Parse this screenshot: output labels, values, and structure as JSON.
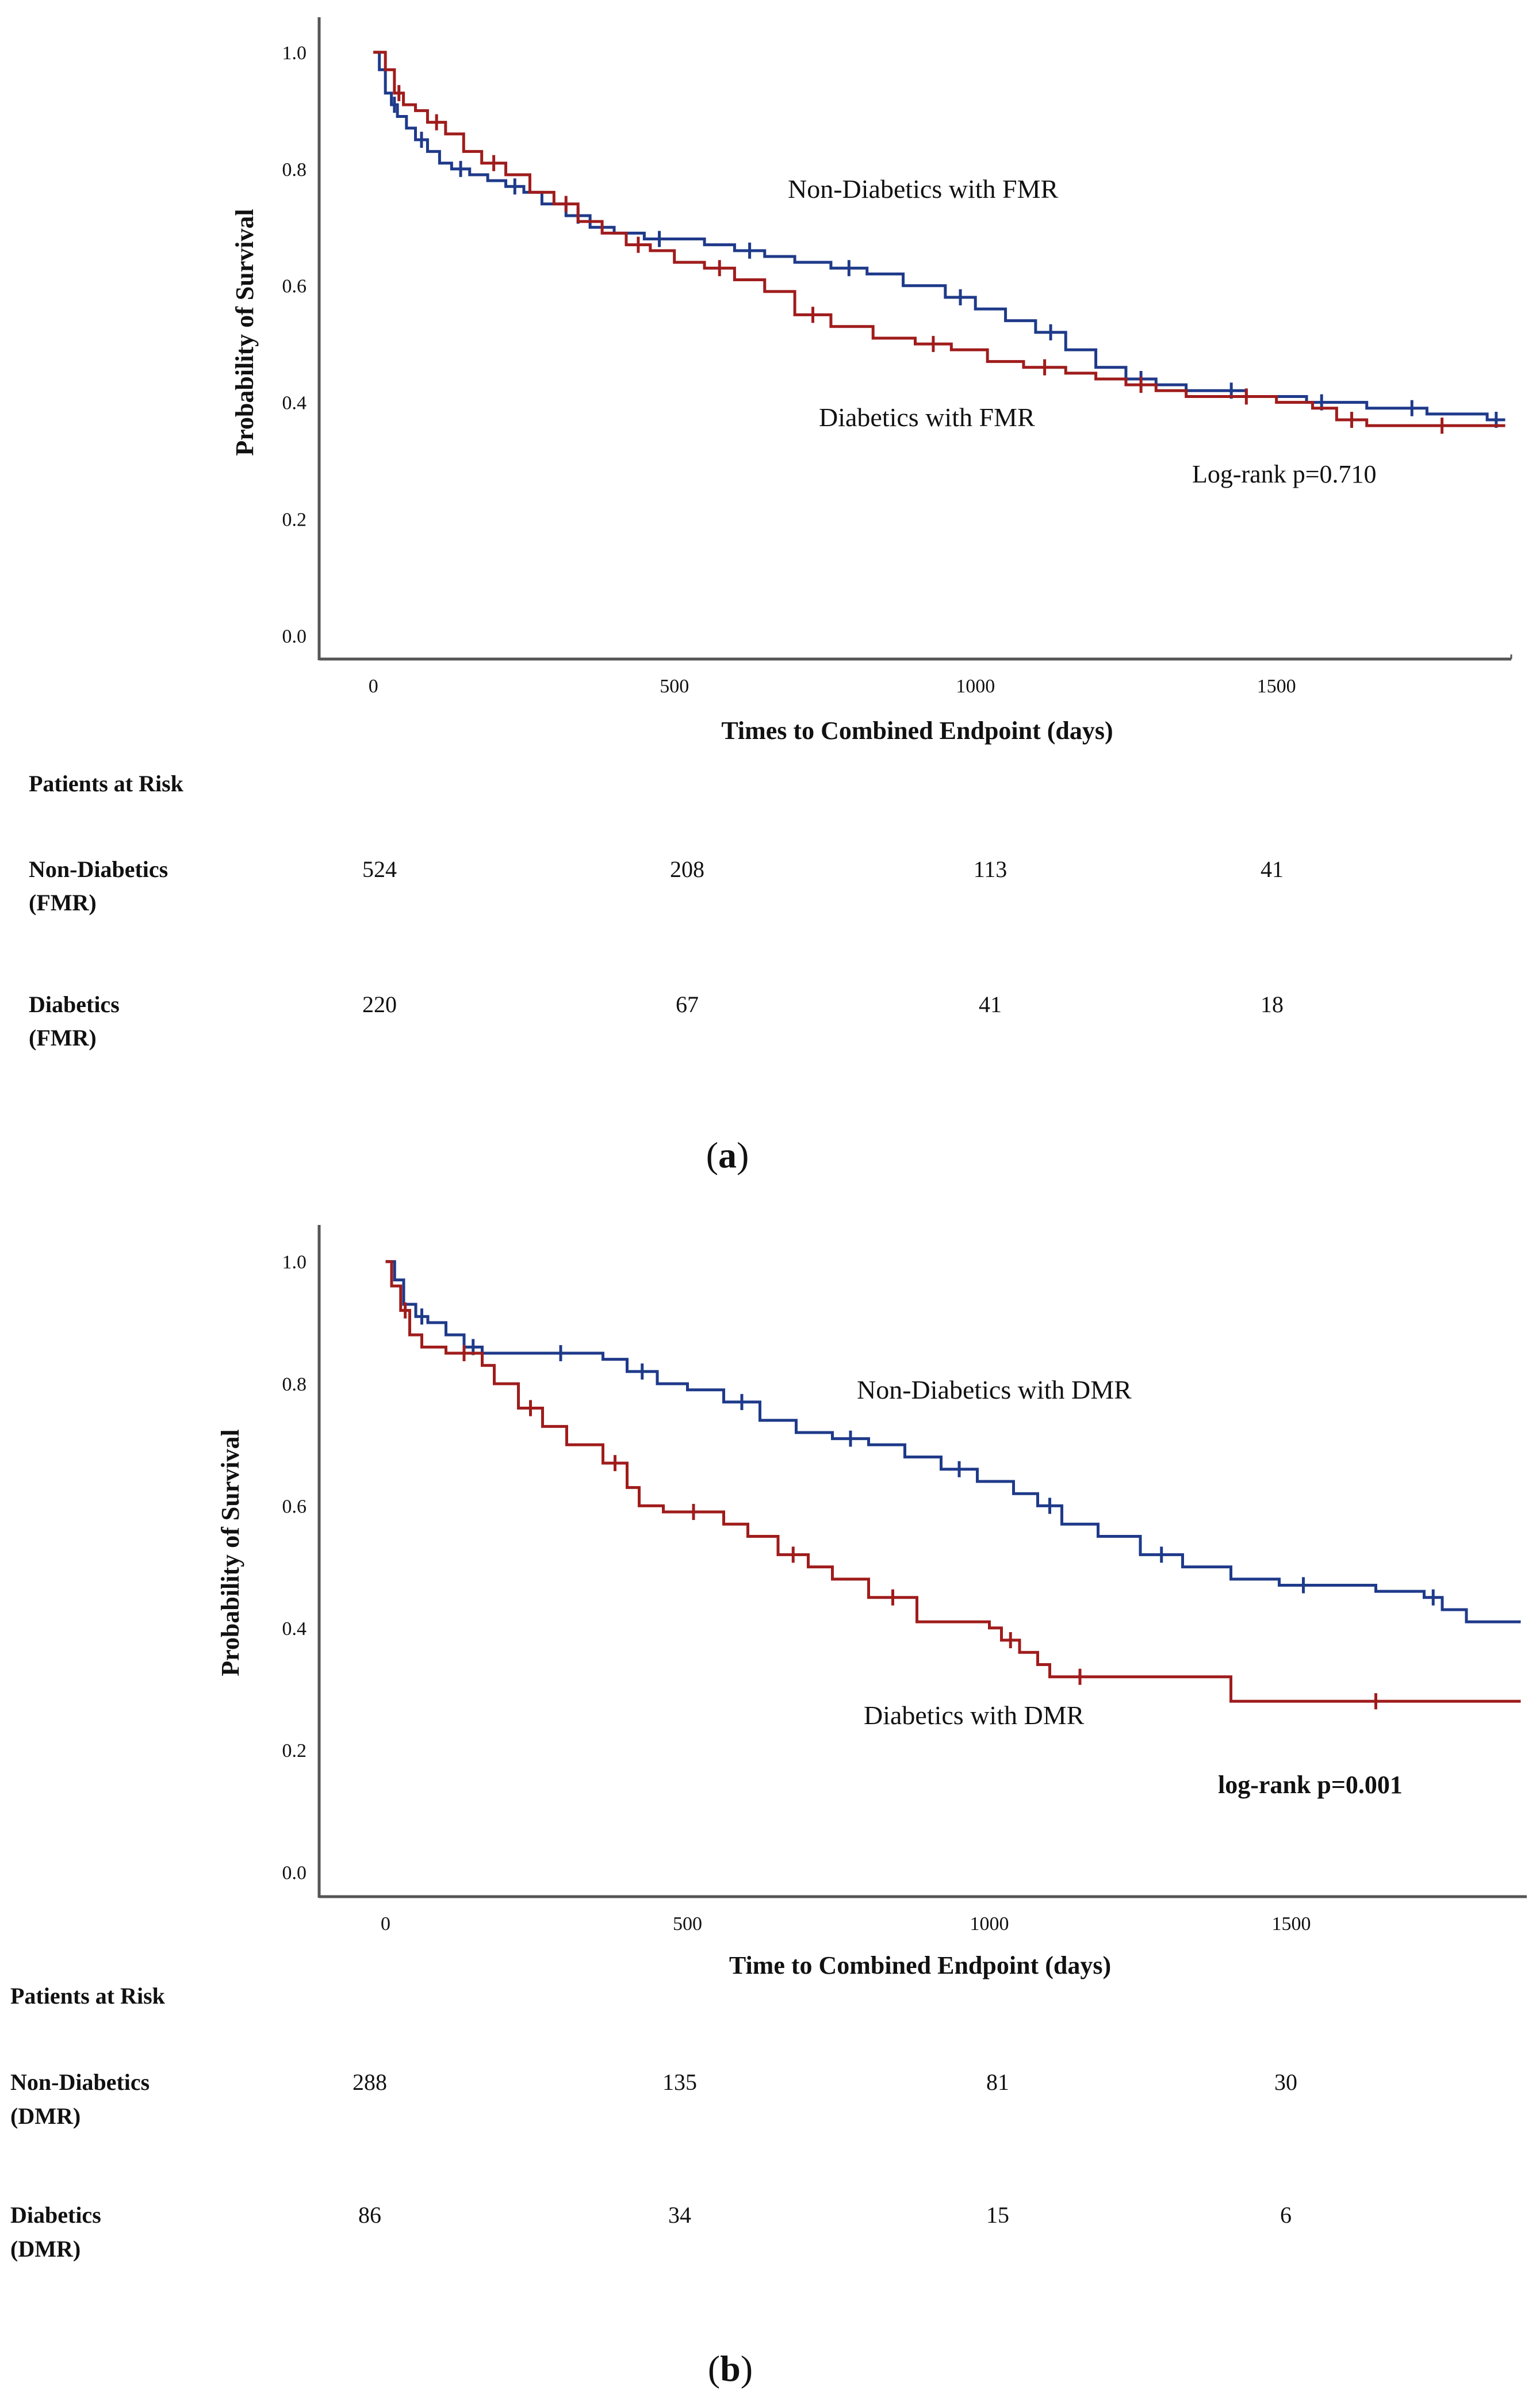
{
  "chart_data": [
    {
      "panel": "(a)",
      "type": "line",
      "subtype": "kaplan-meier",
      "xlabel": "Times to Combined Endpoint (days)",
      "ylabel": "Probability of Survival",
      "xlim": [
        -90,
        1890
      ],
      "ylim": [
        -0.04,
        1.06
      ],
      "xticks": [
        0,
        500,
        1000,
        1500
      ],
      "yticks": [
        0.0,
        0.2,
        0.4,
        0.6,
        0.8,
        1.0
      ],
      "ytick_labels": [
        "0.0",
        "0.2",
        "0.4",
        "0.6",
        "0.8",
        "1.0"
      ],
      "annotations": {
        "non_diabetics": "Non-Diabetics with FMR",
        "diabetics": "Diabetics with FMR",
        "pvalue": "Log-rank p=0.710"
      },
      "series": [
        {
          "name": "Non-Diabetics with FMR",
          "color": "#1f3a8a",
          "x": [
            0,
            10,
            20,
            30,
            40,
            55,
            70,
            90,
            110,
            130,
            160,
            190,
            220,
            250,
            280,
            320,
            360,
            400,
            450,
            500,
            550,
            600,
            650,
            700,
            760,
            820,
            880,
            950,
            1000,
            1050,
            1100,
            1150,
            1200,
            1250,
            1300,
            1350,
            1400,
            1450,
            1500,
            1550,
            1600,
            1650,
            1700,
            1750,
            1800,
            1850,
            1880
          ],
          "y": [
            1.0,
            0.97,
            0.93,
            0.91,
            0.89,
            0.87,
            0.85,
            0.83,
            0.81,
            0.8,
            0.79,
            0.78,
            0.77,
            0.76,
            0.74,
            0.72,
            0.7,
            0.69,
            0.68,
            0.68,
            0.67,
            0.66,
            0.65,
            0.64,
            0.63,
            0.62,
            0.6,
            0.58,
            0.56,
            0.54,
            0.52,
            0.49,
            0.46,
            0.44,
            0.43,
            0.42,
            0.42,
            0.41,
            0.41,
            0.4,
            0.4,
            0.39,
            0.39,
            0.38,
            0.38,
            0.37,
            0.37
          ]
        },
        {
          "name": "Diabetics with FMR",
          "color": "#a01c1c",
          "x": [
            0,
            20,
            35,
            50,
            70,
            90,
            120,
            150,
            180,
            220,
            260,
            300,
            340,
            380,
            420,
            460,
            500,
            550,
            600,
            650,
            700,
            760,
            830,
            900,
            960,
            1020,
            1080,
            1150,
            1200,
            1250,
            1300,
            1350,
            1400,
            1500,
            1560,
            1600,
            1650,
            1700,
            1750,
            1800,
            1880
          ],
          "y": [
            1.0,
            0.97,
            0.93,
            0.91,
            0.9,
            0.88,
            0.86,
            0.83,
            0.81,
            0.79,
            0.76,
            0.74,
            0.71,
            0.69,
            0.67,
            0.66,
            0.64,
            0.63,
            0.61,
            0.59,
            0.55,
            0.53,
            0.51,
            0.5,
            0.49,
            0.47,
            0.46,
            0.45,
            0.44,
            0.43,
            0.42,
            0.41,
            0.41,
            0.4,
            0.39,
            0.37,
            0.36,
            0.36,
            0.36,
            0.36,
            0.36
          ]
        }
      ],
      "risk_table": {
        "title": "Patients at Risk",
        "rows": [
          {
            "label1": "Non-Diabetics",
            "label2": "(FMR)",
            "counts": [
              "524",
              "208",
              "113",
              "41"
            ]
          },
          {
            "label1": "Diabetics",
            "label2": "(FMR)",
            "counts": [
              "220",
              "67",
              "41",
              "18"
            ]
          }
        ]
      }
    },
    {
      "panel": "(b)",
      "type": "line",
      "subtype": "kaplan-meier",
      "xlabel": "Time to Combined Endpoint (days)",
      "ylabel": "Probability of Survival",
      "xlim": [
        -110,
        1890
      ],
      "ylim": [
        -0.04,
        1.06
      ],
      "xticks": [
        0,
        500,
        1000,
        1500
      ],
      "yticks": [
        0.0,
        0.2,
        0.4,
        0.6,
        0.8,
        1.0
      ],
      "ytick_labels": [
        "0.0",
        "0.2",
        "0.4",
        "0.6",
        "0.8",
        "1.0"
      ],
      "annotations": {
        "non_diabetics": "Non-Diabetics with DMR",
        "diabetics": "Diabetics with DMR",
        "pvalue": "log-rank p=0.001"
      },
      "series": [
        {
          "name": "Non-Diabetics with DMR",
          "color": "#1f3a8a",
          "x": [
            0,
            15,
            30,
            50,
            70,
            100,
            130,
            160,
            200,
            260,
            320,
            360,
            400,
            450,
            500,
            560,
            620,
            680,
            740,
            800,
            860,
            920,
            980,
            1040,
            1080,
            1120,
            1180,
            1250,
            1320,
            1400,
            1480,
            1560,
            1640,
            1720,
            1750,
            1790,
            1880
          ],
          "y": [
            1.0,
            0.97,
            0.93,
            0.91,
            0.9,
            0.88,
            0.86,
            0.85,
            0.85,
            0.85,
            0.85,
            0.84,
            0.82,
            0.8,
            0.79,
            0.77,
            0.74,
            0.72,
            0.71,
            0.7,
            0.68,
            0.66,
            0.64,
            0.62,
            0.6,
            0.57,
            0.55,
            0.52,
            0.5,
            0.48,
            0.47,
            0.47,
            0.46,
            0.45,
            0.43,
            0.41,
            0.41
          ]
        },
        {
          "name": "Diabetics with DMR",
          "color": "#a01c1c",
          "x": [
            0,
            10,
            25,
            40,
            60,
            100,
            160,
            180,
            220,
            260,
            300,
            360,
            400,
            420,
            460,
            560,
            600,
            650,
            700,
            740,
            800,
            880,
            1000,
            1020,
            1050,
            1080,
            1100,
            1200,
            1300,
            1400,
            1880
          ],
          "y": [
            1.0,
            0.96,
            0.92,
            0.88,
            0.86,
            0.85,
            0.83,
            0.8,
            0.76,
            0.73,
            0.7,
            0.67,
            0.63,
            0.6,
            0.59,
            0.57,
            0.55,
            0.52,
            0.5,
            0.48,
            0.45,
            0.41,
            0.4,
            0.38,
            0.36,
            0.34,
            0.32,
            0.32,
            0.32,
            0.28,
            0.28
          ]
        }
      ],
      "risk_table": {
        "title": "Patients at Risk",
        "rows": [
          {
            "label1": "Non-Diabetics",
            "label2": "(DMR)",
            "counts": [
              "288",
              "135",
              "81",
              "30"
            ]
          },
          {
            "label1": "Diabetics",
            "label2": "(DMR)",
            "counts": [
              "86",
              "34",
              "15",
              "6"
            ]
          }
        ]
      }
    }
  ]
}
